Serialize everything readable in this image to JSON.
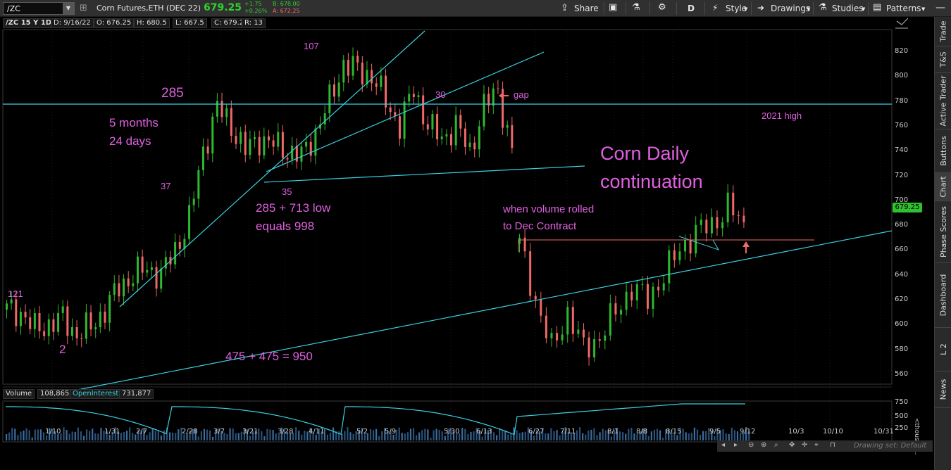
{
  "toolbar": {
    "symbol": "/ZC",
    "description": "Corn Futures,ETH (DEC 22)",
    "last": "679.25",
    "change": "+1.75",
    "change_pct": "+0.26%",
    "bid": "B: 678.00",
    "ask": "A: 672.25",
    "share": "Share",
    "timeframe": "D",
    "style": "Style",
    "drawings": "Drawings",
    "studies": "Studies",
    "patterns": "Patterns"
  },
  "header": {
    "symbol_period": "/ZC 15 Y 1D",
    "date": "D: 9/16/22",
    "open": "O: 676.25",
    "high": "H: 680.5",
    "low": "L: 667.5",
    "close": "C: 679.25",
    "range": "R: 13"
  },
  "volume_panel": {
    "label": "Volume",
    "volume": "108,865",
    "oi_label": "OpenInterest",
    "oi": "731,877",
    "ticks": [
      "750",
      "500",
      "250"
    ],
    "unit": "<thousan..."
  },
  "price_axis": [
    "820",
    "800",
    "780",
    "760",
    "740",
    "720",
    "700",
    "680",
    "660",
    "640",
    "620",
    "600",
    "580",
    "560"
  ],
  "price_badge": "679.25",
  "time_axis": [
    "1/10",
    "1/31",
    "2/7",
    "2/28",
    "3/7",
    "3/21",
    "3/28",
    "4/11",
    "5/2",
    "5/9",
    "5/30",
    "6/13",
    "6/27",
    "7/11",
    "8/1",
    "8/8",
    "8/15",
    "9/5",
    "9/12",
    "10/3",
    "10/10",
    "10/31"
  ],
  "annotations": {
    "n121": "121",
    "n2": "2",
    "n37": "37",
    "n285": "285",
    "months": "5 months",
    "days": "24 days",
    "n107": "107",
    "n35": "35",
    "sum_line1": "285 + 713 low",
    "sum_line2": "equals 998",
    "sum950": "475 + 475 = 950",
    "n30": "30",
    "gap": "gap",
    "high2021": "2021 high",
    "title1": "Corn Daily",
    "title2": "continuation",
    "vol1": "when volume rolled",
    "vol2": "to Dec Contract"
  },
  "drawing_set": "Drawing set: Default",
  "side_tabs": [
    "Trade",
    "T&S",
    "Active Trader",
    "Buttons",
    "Chart",
    "Phase Scores",
    "Dashboard",
    "L 2",
    "News"
  ],
  "colors": {
    "up": "#2fb82f",
    "down": "#f06868",
    "trendline": "#3ad0e0",
    "annotation": "#e060e0",
    "price_badge": "#2ec02e"
  },
  "chart_data": {
    "type": "candlestick",
    "ylim": [
      550,
      830
    ],
    "ohlc_path": [
      [
        612,
        612
      ],
      [
        610,
        596
      ],
      [
        596,
        590
      ],
      [
        600,
        607
      ],
      [
        605,
        598
      ],
      [
        592,
        603
      ],
      [
        598,
        610
      ],
      [
        612,
        625
      ],
      [
        630,
        645
      ],
      [
        640,
        650
      ],
      [
        645,
        636
      ],
      [
        640,
        658
      ],
      [
        660,
        675
      ],
      [
        685,
        715
      ],
      [
        740,
        770
      ],
      [
        775,
        750
      ],
      [
        760,
        740
      ],
      [
        740,
        765
      ],
      [
        750,
        738
      ],
      [
        745,
        755
      ],
      [
        740,
        728
      ],
      [
        735,
        745
      ],
      [
        755,
        770
      ],
      [
        780,
        800
      ],
      [
        810,
        820
      ],
      [
        805,
        790
      ],
      [
        800,
        805
      ],
      [
        780,
        770
      ],
      [
        760,
        778
      ],
      [
        790,
        775
      ],
      [
        760,
        770
      ],
      [
        750,
        760
      ],
      [
        760,
        765
      ],
      [
        740,
        735
      ],
      [
        775,
        770
      ],
      [
        790,
        745
      ],
      [
        735,
        740
      ]
    ],
    "ohlc_path_2": [
      [
        665,
        650
      ],
      [
        620,
        590
      ],
      [
        580,
        625
      ],
      [
        610,
        600
      ],
      [
        580,
        565
      ],
      [
        590,
        605
      ],
      [
        610,
        625
      ],
      [
        630,
        610
      ],
      [
        620,
        630
      ],
      [
        640,
        650
      ],
      [
        660,
        672
      ],
      [
        675,
        665
      ],
      [
        680,
        690
      ],
      [
        695,
        685
      ],
      [
        680,
        679
      ]
    ]
  }
}
